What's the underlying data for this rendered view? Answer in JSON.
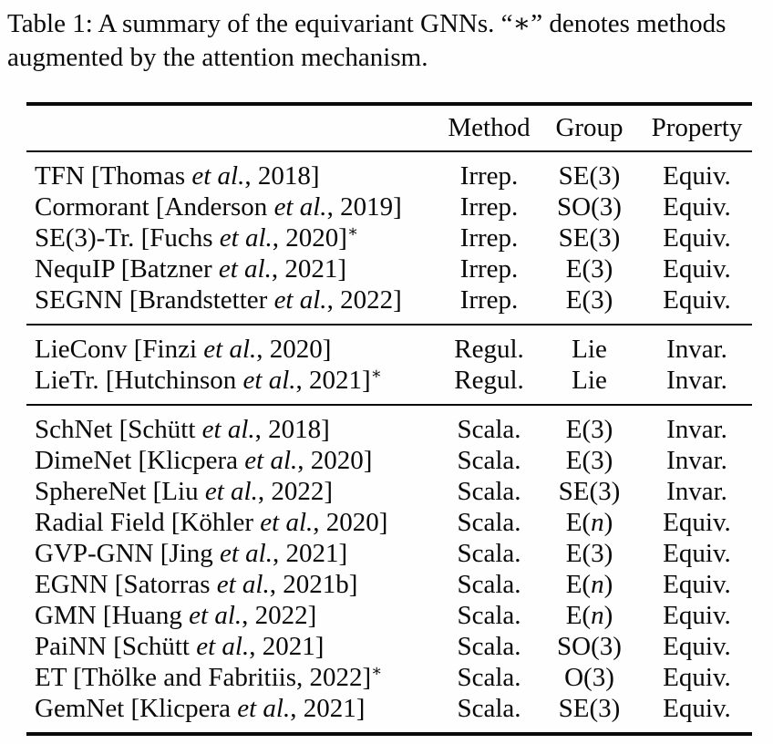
{
  "caption": {
    "line1": "Table 1: A summary of the equivariant GNNs. “∗” denotes methods",
    "line2": "augmented by the attention mechanism."
  },
  "table": {
    "columns": [
      "Method",
      "Group",
      "Property"
    ],
    "sections": [
      {
        "rows": [
          {
            "name": {
              "pre": "TFN [Thomas ",
              "it": "et al.",
              "post": ", 2018]",
              "star": ""
            },
            "method": "Irrep.",
            "group": {
              "pre": "SE(3)",
              "it": "",
              "post": ""
            },
            "property": "Equiv."
          },
          {
            "name": {
              "pre": "Cormorant [Anderson ",
              "it": "et al.",
              "post": ", 2019]",
              "star": ""
            },
            "method": "Irrep.",
            "group": {
              "pre": "SO(3)",
              "it": "",
              "post": ""
            },
            "property": "Equiv."
          },
          {
            "name": {
              "pre": "SE(3)-Tr. [Fuchs ",
              "it": "et al.",
              "post": ", 2020]",
              "star": "∗"
            },
            "method": "Irrep.",
            "group": {
              "pre": "SE(3)",
              "it": "",
              "post": ""
            },
            "property": "Equiv."
          },
          {
            "name": {
              "pre": "NequIP [Batzner ",
              "it": "et al.",
              "post": ", 2021]",
              "star": ""
            },
            "method": "Irrep.",
            "group": {
              "pre": "E(3)",
              "it": "",
              "post": ""
            },
            "property": "Equiv."
          },
          {
            "name": {
              "pre": "SEGNN [Brandstetter ",
              "it": "et al.",
              "post": ", 2022]",
              "star": ""
            },
            "method": "Irrep.",
            "group": {
              "pre": "E(3)",
              "it": "",
              "post": ""
            },
            "property": "Equiv."
          }
        ]
      },
      {
        "rows": [
          {
            "name": {
              "pre": "LieConv [Finzi ",
              "it": "et al.",
              "post": ", 2020]",
              "star": ""
            },
            "method": "Regul.",
            "group": {
              "pre": "Lie",
              "it": "",
              "post": ""
            },
            "property": "Invar."
          },
          {
            "name": {
              "pre": "LieTr. [Hutchinson ",
              "it": "et al.",
              "post": ", 2021]",
              "star": "∗"
            },
            "method": "Regul.",
            "group": {
              "pre": "Lie",
              "it": "",
              "post": ""
            },
            "property": "Invar."
          }
        ]
      },
      {
        "rows": [
          {
            "name": {
              "pre": "SchNet [Schütt ",
              "it": "et al.",
              "post": ", 2018]",
              "star": ""
            },
            "method": "Scala.",
            "group": {
              "pre": "E(3)",
              "it": "",
              "post": ""
            },
            "property": "Invar."
          },
          {
            "name": {
              "pre": "DimeNet [Klicpera ",
              "it": "et al.",
              "post": ", 2020]",
              "star": ""
            },
            "method": "Scala.",
            "group": {
              "pre": "E(3)",
              "it": "",
              "post": ""
            },
            "property": "Invar."
          },
          {
            "name": {
              "pre": "SphereNet [Liu ",
              "it": "et al.",
              "post": ", 2022]",
              "star": ""
            },
            "method": "Scala.",
            "group": {
              "pre": "SE(3)",
              "it": "",
              "post": ""
            },
            "property": "Invar."
          },
          {
            "name": {
              "pre": "Radial Field [Köhler ",
              "it": "et al.",
              "post": ", 2020]",
              "star": ""
            },
            "method": "Scala.",
            "group": {
              "pre": "E(",
              "it": "n",
              "post": ")"
            },
            "property": "Equiv."
          },
          {
            "name": {
              "pre": "GVP-GNN [Jing ",
              "it": "et al.",
              "post": ", 2021]",
              "star": ""
            },
            "method": "Scala.",
            "group": {
              "pre": "E(3)",
              "it": "",
              "post": ""
            },
            "property": "Equiv."
          },
          {
            "name": {
              "pre": "EGNN [Satorras ",
              "it": "et al.",
              "post": ", 2021b]",
              "star": ""
            },
            "method": "Scala.",
            "group": {
              "pre": "E(",
              "it": "n",
              "post": ")"
            },
            "property": "Equiv."
          },
          {
            "name": {
              "pre": "GMN [Huang ",
              "it": "et al.",
              "post": ", 2022]",
              "star": ""
            },
            "method": "Scala.",
            "group": {
              "pre": "E(",
              "it": "n",
              "post": ")"
            },
            "property": "Equiv."
          },
          {
            "name": {
              "pre": "PaiNN [Schütt ",
              "it": "et al.",
              "post": ", 2021]",
              "star": ""
            },
            "method": "Scala.",
            "group": {
              "pre": "SO(3)",
              "it": "",
              "post": ""
            },
            "property": "Equiv."
          },
          {
            "name": {
              "pre": "ET [Thölke and Fabritiis, 2022]",
              "it": "",
              "post": "",
              "star": "∗"
            },
            "method": "Scala.",
            "group": {
              "pre": "O(3)",
              "it": "",
              "post": ""
            },
            "property": "Equiv."
          },
          {
            "name": {
              "pre": "GemNet [Klicpera ",
              "it": "et al.",
              "post": ", 2021]",
              "star": ""
            },
            "method": "Scala.",
            "group": {
              "pre": "SE(3)",
              "it": "",
              "post": ""
            },
            "property": "Equiv."
          }
        ]
      }
    ]
  }
}
